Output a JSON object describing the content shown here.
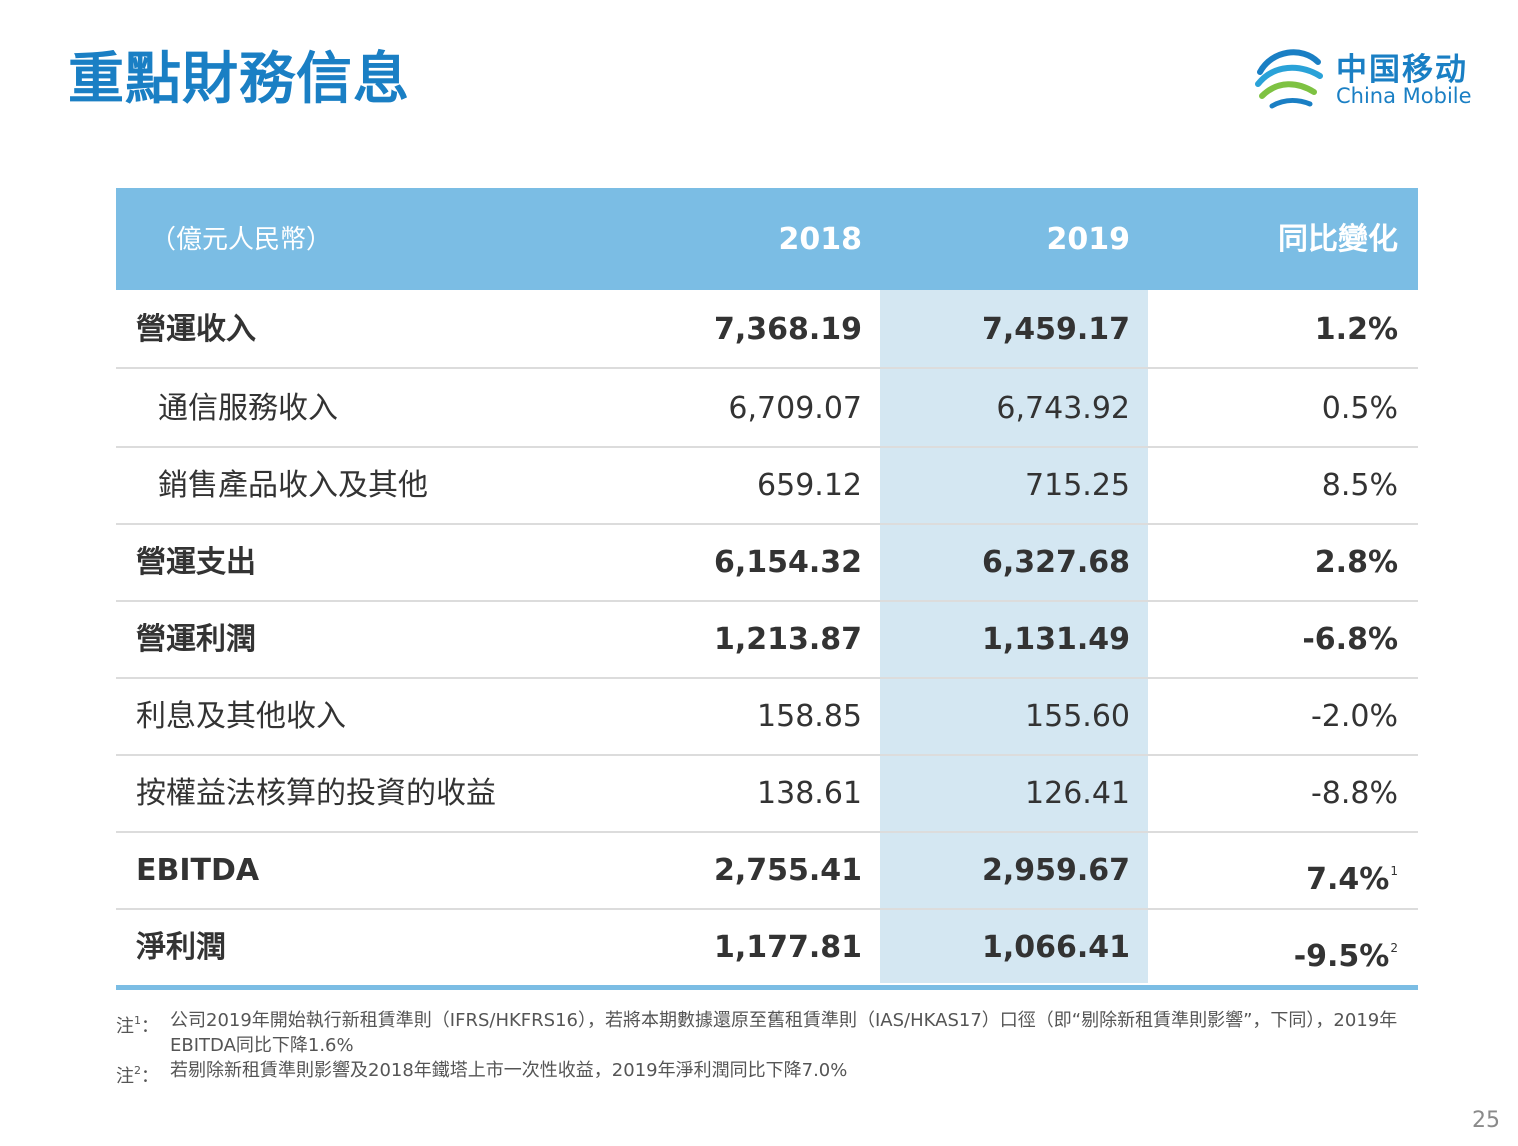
{
  "title": "重點財務信息",
  "logo": {
    "cn": "中国移动",
    "en": "China Mobile"
  },
  "table": {
    "header": {
      "unit": "（億元人民幣）",
      "col_2018": "2018",
      "col_2019": "2019",
      "col_change": "同比變化"
    },
    "rows": [
      {
        "label": "營運收入",
        "v2018": "7,368.19",
        "v2019": "7,459.17",
        "change": "1.2%",
        "sup": ""
      },
      {
        "label": "通信服務收入",
        "v2018": "6,709.07",
        "v2019": "6,743.92",
        "change": "0.5%",
        "sup": ""
      },
      {
        "label": "銷售產品收入及其他",
        "v2018": "659.12",
        "v2019": "715.25",
        "change": "8.5%",
        "sup": ""
      },
      {
        "label": "營運支出",
        "v2018": "6,154.32",
        "v2019": "6,327.68",
        "change": "2.8%",
        "sup": ""
      },
      {
        "label": "營運利潤",
        "v2018": "1,213.87",
        "v2019": "1,131.49",
        "change": "-6.8%",
        "sup": ""
      },
      {
        "label": "利息及其他收入",
        "v2018": "158.85",
        "v2019": "155.60",
        "change": "-2.0%",
        "sup": ""
      },
      {
        "label": "按權益法核算的投資的收益",
        "v2018": "138.61",
        "v2019": "126.41",
        "change": "-8.8%",
        "sup": ""
      },
      {
        "label": "EBITDA",
        "v2018": "2,755.41",
        "v2019": "2,959.67",
        "change": "7.4%",
        "sup": "1"
      },
      {
        "label": "淨利潤",
        "v2018": "1,177.81",
        "v2019": "1,066.41",
        "change": "-9.5%",
        "sup": "2"
      }
    ]
  },
  "notes": [
    {
      "mark": "注",
      "sup": "1",
      "sep": "：",
      "text": "公司2019年開始執行新租賃準則（IFRS/HKFRS16），若將本期數據還原至舊租賃準則（IAS/HKAS17）口徑（即“剔除新租賃準則影響”，下同），2019年EBITDA同比下降1.6%"
    },
    {
      "mark": "注",
      "sup": "2",
      "sep": "：",
      "text": "若剔除新租賃準則影響及2018年鐵塔上市一次性收益，2019年淨利潤同比下降7.0%"
    }
  ],
  "page_number": "25",
  "colors": {
    "accent": "#1a7fc4",
    "header_bg": "#7bbde4",
    "highlight_col": "#d4e7f2"
  }
}
